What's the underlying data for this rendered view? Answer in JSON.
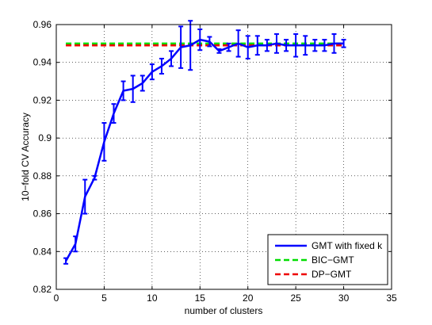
{
  "chart_data": {
    "type": "line",
    "xlabel": "number of clusters",
    "ylabel": "10−fold CV Accuracy",
    "xlim": [
      0,
      35
    ],
    "ylim": [
      0.82,
      0.96
    ],
    "xticks": [
      0,
      5,
      10,
      15,
      20,
      25,
      30,
      35
    ],
    "yticks": [
      0.82,
      0.84,
      0.86,
      0.88,
      0.9,
      0.92,
      0.94,
      0.96
    ],
    "xtick_labels": [
      "0",
      "5",
      "10",
      "15",
      "20",
      "25",
      "30",
      "35"
    ],
    "ytick_labels": [
      "0.82",
      "0.84",
      "0.86",
      "0.88",
      "0.9",
      "0.92",
      "0.94",
      "0.96"
    ],
    "grid": true,
    "legend_position": "bottom-right",
    "series": [
      {
        "name": "GMT with fixed k",
        "style": "solid",
        "color": "#0000ff",
        "x": [
          1,
          2,
          3,
          4,
          5,
          6,
          7,
          8,
          9,
          10,
          11,
          12,
          13,
          14,
          15,
          16,
          17,
          18,
          19,
          20,
          21,
          22,
          23,
          24,
          25,
          26,
          27,
          28,
          29,
          30
        ],
        "y": [
          0.835,
          0.844,
          0.869,
          0.879,
          0.898,
          0.913,
          0.925,
          0.926,
          0.929,
          0.935,
          0.938,
          0.942,
          0.948,
          0.949,
          0.952,
          0.951,
          0.946,
          0.948,
          0.95,
          0.948,
          0.949,
          0.949,
          0.95,
          0.949,
          0.949,
          0.949,
          0.949,
          0.949,
          0.95,
          0.95
        ],
        "error": [
          0.0015,
          0.004,
          0.009,
          0.001,
          0.01,
          0.005,
          0.005,
          0.007,
          0.004,
          0.004,
          0.004,
          0.004,
          0.011,
          0.013,
          0.0055,
          0.0025,
          0.001,
          0.002,
          0.007,
          0.006,
          0.005,
          0.003,
          0.005,
          0.003,
          0.006,
          0.005,
          0.003,
          0.003,
          0.005,
          0.002
        ]
      },
      {
        "name": "BIC−GMT",
        "style": "dashed",
        "color": "#00dd00",
        "x": [
          1,
          30
        ],
        "y": [
          0.95,
          0.95
        ]
      },
      {
        "name": "DP−GMT",
        "style": "dashed",
        "color": "#ee0000",
        "x": [
          1,
          30
        ],
        "y": [
          0.949,
          0.949
        ]
      }
    ]
  }
}
